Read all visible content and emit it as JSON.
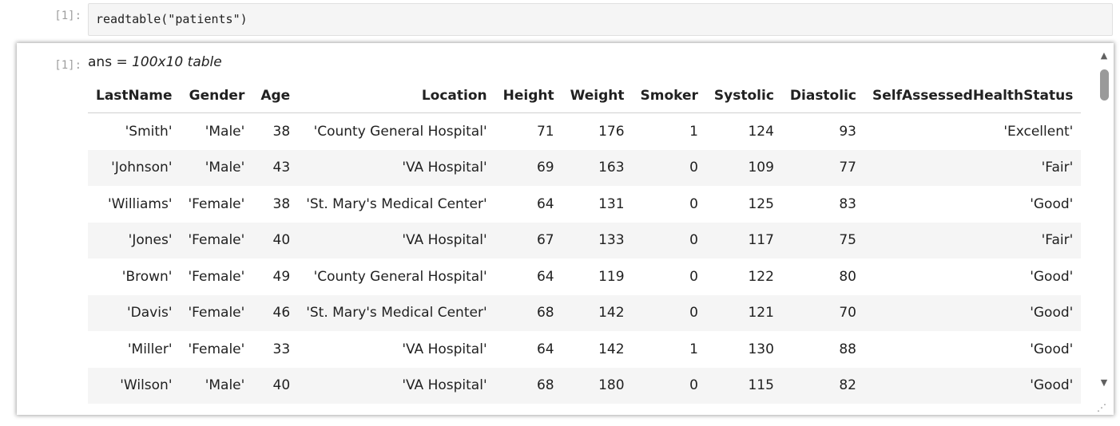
{
  "input_cell": {
    "prompt": "[1]:",
    "code": "readtable(\"patients\")"
  },
  "output_cell": {
    "prompt": "[1]:",
    "ans_prefix": "ans = ",
    "ans_desc": "100x10 table"
  },
  "table": {
    "headers": [
      "LastName",
      "Gender",
      "Age",
      "Location",
      "Height",
      "Weight",
      "Smoker",
      "Systolic",
      "Diastolic",
      "SelfAssessedHealthStatus"
    ],
    "rows": [
      [
        "'Smith'",
        "'Male'",
        "38",
        "'County General Hospital'",
        "71",
        "176",
        "1",
        "124",
        "93",
        "'Excellent'"
      ],
      [
        "'Johnson'",
        "'Male'",
        "43",
        "'VA Hospital'",
        "69",
        "163",
        "0",
        "109",
        "77",
        "'Fair'"
      ],
      [
        "'Williams'",
        "'Female'",
        "38",
        "'St. Mary's Medical Center'",
        "64",
        "131",
        "0",
        "125",
        "83",
        "'Good'"
      ],
      [
        "'Jones'",
        "'Female'",
        "40",
        "'VA Hospital'",
        "67",
        "133",
        "0",
        "117",
        "75",
        "'Fair'"
      ],
      [
        "'Brown'",
        "'Female'",
        "49",
        "'County General Hospital'",
        "64",
        "119",
        "0",
        "122",
        "80",
        "'Good'"
      ],
      [
        "'Davis'",
        "'Female'",
        "46",
        "'St. Mary's Medical Center'",
        "68",
        "142",
        "0",
        "121",
        "70",
        "'Good'"
      ],
      [
        "'Miller'",
        "'Female'",
        "33",
        "'VA Hospital'",
        "64",
        "142",
        "1",
        "130",
        "88",
        "'Good'"
      ],
      [
        "'Wilson'",
        "'Male'",
        "40",
        "'VA Hospital'",
        "68",
        "180",
        "0",
        "115",
        "82",
        "'Good'"
      ]
    ]
  },
  "scrollbar": {
    "up_icon": "▲",
    "down_icon": "▼"
  },
  "resize_icon": "⁄⁄"
}
